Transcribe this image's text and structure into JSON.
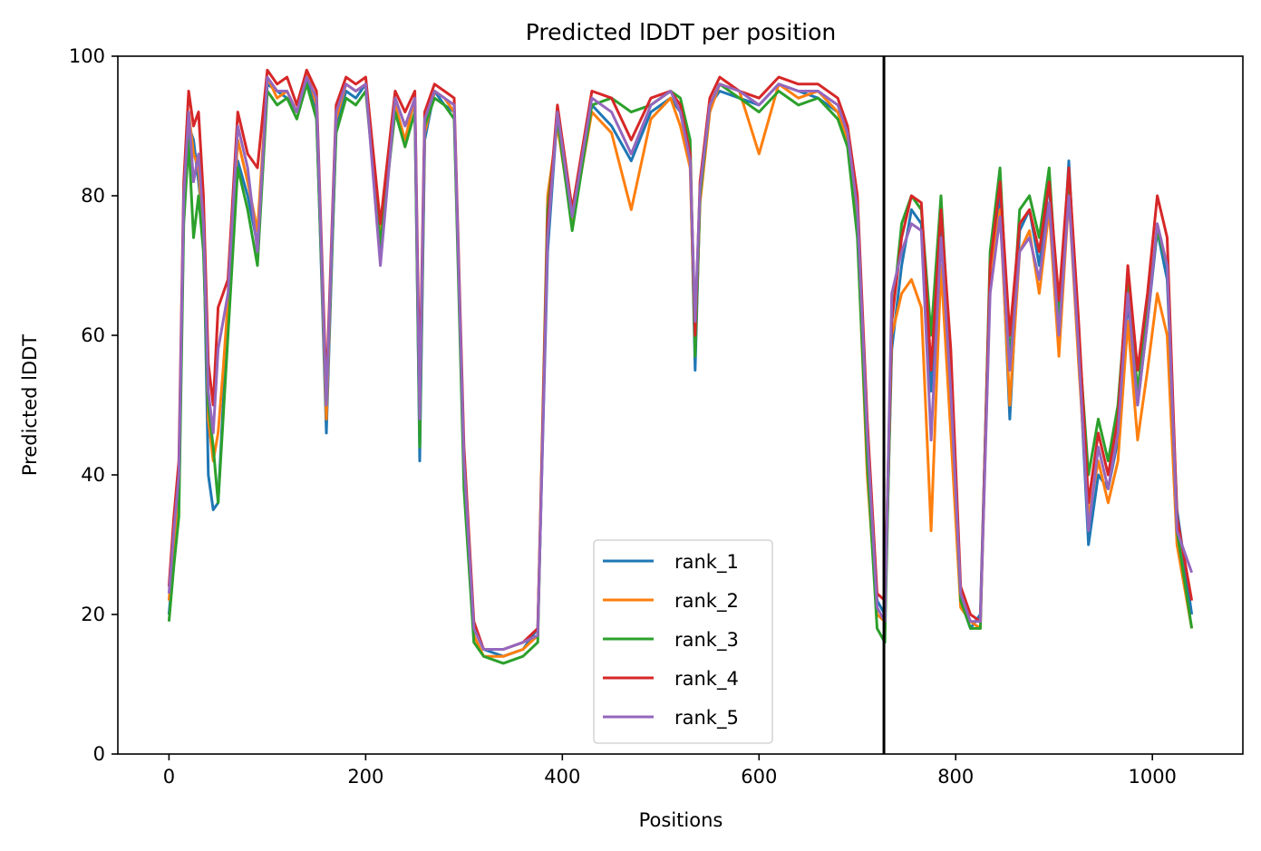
{
  "chart_data": {
    "type": "line",
    "title": "Predicted lDDT per position",
    "xlabel": "Positions",
    "ylabel": "Predicted lDDT",
    "xlim": [
      -52,
      1092
    ],
    "ylim": [
      0,
      100
    ],
    "xticks": [
      0,
      200,
      400,
      600,
      800,
      1000
    ],
    "yticks": [
      0,
      20,
      40,
      60,
      80,
      100
    ],
    "grid": false,
    "legend_position": "lower-center",
    "vline": {
      "x": 727,
      "color": "#000000"
    },
    "series": [
      {
        "name": "rank_1",
        "color": "#1f77b4",
        "x": [
          0,
          5,
          10,
          15,
          20,
          25,
          30,
          35,
          40,
          45,
          50,
          55,
          60,
          70,
          80,
          90,
          100,
          110,
          120,
          130,
          140,
          150,
          160,
          170,
          180,
          190,
          200,
          215,
          230,
          240,
          250,
          255,
          260,
          270,
          280,
          290,
          300,
          310,
          320,
          340,
          360,
          375,
          385,
          395,
          410,
          430,
          450,
          470,
          490,
          510,
          520,
          530,
          535,
          540,
          550,
          560,
          580,
          600,
          620,
          640,
          660,
          680,
          690,
          700,
          710,
          720,
          728,
          735,
          745,
          755,
          765,
          775,
          785,
          795,
          805,
          815,
          825,
          835,
          845,
          855,
          865,
          875,
          885,
          895,
          905,
          915,
          925,
          935,
          945,
          955,
          965,
          975,
          985,
          995,
          1005,
          1015,
          1025,
          1040
        ],
        "values": [
          20,
          28,
          36,
          78,
          90,
          88,
          82,
          76,
          40,
          35,
          36,
          50,
          62,
          85,
          80,
          73,
          96,
          95,
          94,
          92,
          97,
          92,
          46,
          90,
          95,
          94,
          96,
          72,
          94,
          90,
          93,
          42,
          88,
          95,
          93,
          92,
          42,
          18,
          15,
          14,
          15,
          18,
          72,
          92,
          78,
          93,
          90,
          85,
          92,
          94,
          92,
          86,
          55,
          80,
          93,
          95,
          94,
          93,
          96,
          95,
          94,
          92,
          88,
          78,
          45,
          22,
          20,
          58,
          70,
          78,
          76,
          52,
          78,
          50,
          22,
          18,
          20,
          70,
          80,
          48,
          75,
          78,
          70,
          82,
          60,
          85,
          58,
          30,
          40,
          38,
          45,
          65,
          50,
          62,
          75,
          68,
          35,
          20
        ]
      },
      {
        "name": "rank_2",
        "color": "#ff7f0e",
        "x": [
          0,
          5,
          10,
          15,
          20,
          25,
          30,
          35,
          40,
          45,
          50,
          55,
          60,
          70,
          80,
          90,
          100,
          110,
          120,
          130,
          140,
          150,
          160,
          170,
          180,
          190,
          200,
          215,
          230,
          240,
          250,
          255,
          260,
          270,
          280,
          290,
          300,
          310,
          320,
          340,
          360,
          375,
          385,
          395,
          410,
          430,
          450,
          470,
          490,
          510,
          520,
          530,
          535,
          540,
          550,
          560,
          580,
          600,
          620,
          640,
          660,
          680,
          690,
          700,
          710,
          720,
          728,
          735,
          745,
          755,
          765,
          775,
          785,
          795,
          805,
          815,
          825,
          835,
          845,
          855,
          865,
          875,
          885,
          895,
          905,
          915,
          925,
          935,
          945,
          955,
          965,
          975,
          985,
          995,
          1005,
          1015,
          1025,
          1040
        ],
        "values": [
          22,
          30,
          38,
          80,
          92,
          86,
          84,
          74,
          48,
          42,
          46,
          55,
          65,
          88,
          82,
          75,
          97,
          94,
          95,
          92,
          98,
          93,
          48,
          91,
          96,
          95,
          96,
          74,
          93,
          88,
          94,
          46,
          89,
          95,
          94,
          92,
          40,
          17,
          14,
          14,
          15,
          17,
          80,
          90,
          76,
          92,
          89,
          78,
          91,
          94,
          90,
          84,
          58,
          79,
          92,
          96,
          95,
          86,
          96,
          94,
          95,
          92,
          88,
          75,
          40,
          20,
          19,
          60,
          66,
          68,
          64,
          32,
          70,
          46,
          21,
          19,
          18,
          68,
          78,
          50,
          72,
          75,
          66,
          78,
          57,
          80,
          56,
          34,
          42,
          36,
          42,
          62,
          45,
          55,
          66,
          60,
          30,
          18
        ]
      },
      {
        "name": "rank_3",
        "color": "#2ca02c",
        "x": [
          0,
          5,
          10,
          15,
          20,
          25,
          30,
          35,
          40,
          45,
          50,
          55,
          60,
          70,
          80,
          90,
          100,
          110,
          120,
          130,
          140,
          150,
          160,
          170,
          180,
          190,
          200,
          215,
          230,
          240,
          250,
          255,
          260,
          270,
          280,
          290,
          300,
          310,
          320,
          340,
          360,
          375,
          385,
          395,
          410,
          430,
          450,
          470,
          490,
          510,
          520,
          530,
          535,
          540,
          550,
          560,
          580,
          600,
          620,
          640,
          660,
          680,
          690,
          700,
          710,
          720,
          728,
          735,
          745,
          755,
          765,
          775,
          785,
          795,
          805,
          815,
          825,
          835,
          845,
          855,
          865,
          875,
          885,
          895,
          905,
          915,
          925,
          935,
          945,
          955,
          965,
          975,
          985,
          995,
          1005,
          1015,
          1025,
          1040
        ],
        "values": [
          19,
          27,
          34,
          76,
          88,
          74,
          80,
          72,
          50,
          44,
          36,
          48,
          60,
          84,
          78,
          70,
          95,
          93,
          94,
          91,
          96,
          91,
          50,
          89,
          94,
          93,
          95,
          73,
          92,
          87,
          92,
          44,
          90,
          94,
          93,
          91,
          38,
          16,
          14,
          13,
          14,
          16,
          78,
          91,
          75,
          93,
          94,
          92,
          93,
          95,
          94,
          88,
          57,
          80,
          93,
          96,
          94,
          92,
          95,
          93,
          94,
          91,
          87,
          74,
          42,
          18,
          16,
          62,
          76,
          80,
          78,
          60,
          80,
          55,
          22,
          18,
          18,
          72,
          84,
          56,
          78,
          80,
          74,
          84,
          62,
          82,
          60,
          40,
          48,
          42,
          50,
          68,
          52,
          64,
          75,
          70,
          32,
          18
        ]
      },
      {
        "name": "rank_4",
        "color": "#d62728",
        "x": [
          0,
          5,
          10,
          15,
          20,
          25,
          30,
          35,
          40,
          45,
          50,
          55,
          60,
          70,
          80,
          90,
          100,
          110,
          120,
          130,
          140,
          150,
          160,
          170,
          180,
          190,
          200,
          215,
          230,
          240,
          250,
          255,
          260,
          270,
          280,
          290,
          300,
          310,
          320,
          340,
          360,
          375,
          385,
          395,
          410,
          430,
          450,
          470,
          490,
          510,
          520,
          530,
          535,
          540,
          550,
          560,
          580,
          600,
          620,
          640,
          660,
          680,
          690,
          700,
          710,
          720,
          728,
          735,
          745,
          755,
          765,
          775,
          785,
          795,
          805,
          815,
          825,
          835,
          845,
          855,
          865,
          875,
          885,
          895,
          905,
          915,
          925,
          935,
          945,
          955,
          965,
          975,
          985,
          995,
          1005,
          1015,
          1025,
          1040
        ],
        "values": [
          24,
          34,
          42,
          82,
          95,
          90,
          92,
          80,
          56,
          50,
          64,
          66,
          68,
          92,
          86,
          84,
          98,
          96,
          97,
          93,
          98,
          95,
          52,
          93,
          97,
          96,
          97,
          76,
          95,
          92,
          95,
          52,
          92,
          96,
          95,
          94,
          44,
          19,
          15,
          15,
          16,
          18,
          76,
          93,
          78,
          95,
          94,
          88,
          94,
          95,
          93,
          86,
          60,
          82,
          94,
          97,
          95,
          94,
          97,
          96,
          96,
          94,
          90,
          80,
          48,
          23,
          22,
          62,
          74,
          80,
          79,
          55,
          78,
          58,
          24,
          20,
          19,
          70,
          82,
          60,
          76,
          78,
          72,
          82,
          65,
          84,
          62,
          36,
          46,
          40,
          48,
          70,
          55,
          66,
          80,
          74,
          34,
          22
        ]
      },
      {
        "name": "rank_5",
        "color": "#9467bd",
        "x": [
          0,
          5,
          10,
          15,
          20,
          25,
          30,
          35,
          40,
          45,
          50,
          55,
          60,
          70,
          80,
          90,
          100,
          110,
          120,
          130,
          140,
          150,
          160,
          170,
          180,
          190,
          200,
          215,
          230,
          240,
          250,
          255,
          260,
          270,
          280,
          290,
          300,
          310,
          320,
          340,
          360,
          375,
          385,
          395,
          410,
          430,
          450,
          470,
          490,
          510,
          520,
          530,
          535,
          540,
          550,
          560,
          580,
          600,
          620,
          640,
          660,
          680,
          690,
          700,
          710,
          720,
          728,
          735,
          745,
          755,
          765,
          775,
          785,
          795,
          805,
          815,
          825,
          835,
          845,
          855,
          865,
          875,
          885,
          895,
          905,
          915,
          925,
          935,
          945,
          955,
          965,
          975,
          985,
          995,
          1005,
          1015,
          1025,
          1040
        ],
        "values": [
          23,
          32,
          40,
          80,
          92,
          82,
          86,
          76,
          52,
          46,
          58,
          62,
          66,
          90,
          84,
          72,
          97,
          95,
          95,
          92,
          97,
          94,
          50,
          92,
          96,
          95,
          96,
          70,
          94,
          90,
          94,
          48,
          91,
          95,
          94,
          93,
          42,
          18,
          15,
          15,
          16,
          17,
          74,
          92,
          77,
          94,
          92,
          86,
          93,
          95,
          92,
          85,
          62,
          81,
          93,
          96,
          95,
          93,
          96,
          95,
          95,
          93,
          89,
          78,
          46,
          21,
          19,
          66,
          72,
          76,
          75,
          45,
          74,
          52,
          23,
          19,
          19,
          66,
          77,
          55,
          72,
          74,
          68,
          79,
          60,
          80,
          58,
          32,
          44,
          38,
          46,
          66,
          50,
          62,
          76,
          70,
          32,
          26
        ]
      }
    ]
  }
}
